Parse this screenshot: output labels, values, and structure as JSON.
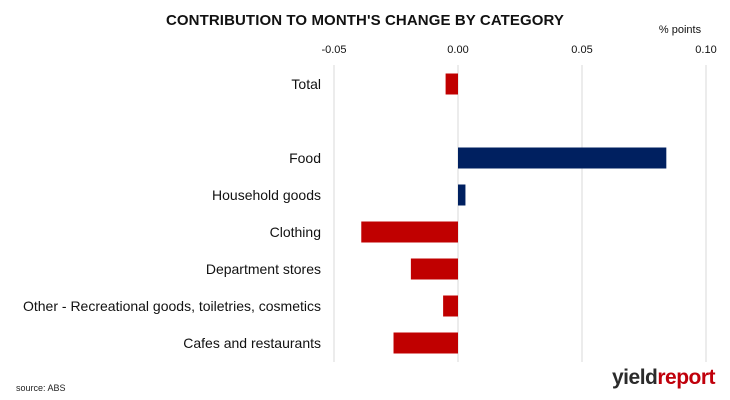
{
  "title": "CONTRIBUTION TO MONTH'S CHANGE BY CATEGORY",
  "unit_label": "% points",
  "source": "source: ABS",
  "brand": {
    "part1": "yield",
    "part2": "report"
  },
  "colors": {
    "negative": "#c00000",
    "positive": "#002060",
    "gridline": "#d9d9d9",
    "text": "#111111"
  },
  "chart_data": {
    "type": "bar",
    "orientation": "horizontal",
    "title": "CONTRIBUTION TO MONTH'S CHANGE BY CATEGORY",
    "xlabel": "% points",
    "ylabel": "",
    "xlim": [
      -0.05,
      0.1
    ],
    "xticks": [
      -0.05,
      0.0,
      0.05,
      0.1
    ],
    "xtick_labels": [
      "-0.05",
      "0.00",
      "0.05",
      "0.10"
    ],
    "xaxis_position": "top",
    "grid": true,
    "categories": [
      "Total",
      "",
      "Food",
      "Household goods",
      "Clothing",
      "Department stores",
      "Other - Recreational goods, toiletries, cosmetics",
      "Cafes and restaurants"
    ],
    "values": [
      -0.005,
      null,
      0.084,
      0.003,
      -0.039,
      -0.019,
      -0.006,
      -0.026
    ]
  }
}
